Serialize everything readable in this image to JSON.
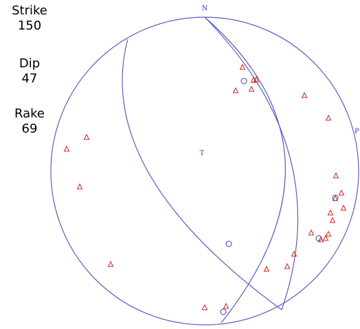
{
  "mechanism": {
    "strike_label": "Strike",
    "strike": "150",
    "dip_label": "Dip",
    "dip": "47",
    "rake_label": "Rake",
    "rake": "69"
  },
  "net": {
    "north_label": "N",
    "p_label": "P",
    "t_label": "T"
  },
  "colors": {
    "net_line": "#5b5bbf",
    "station_triangle": "#d42020",
    "station_circle": "#3a3ab0"
  }
}
